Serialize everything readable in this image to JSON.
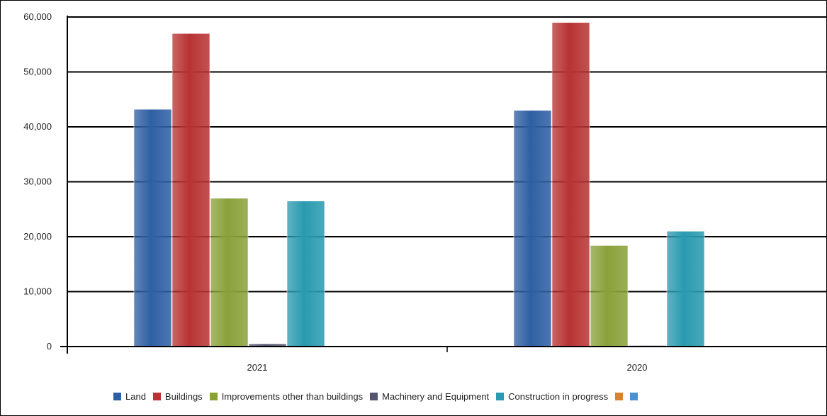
{
  "chart_data": {
    "type": "bar",
    "categories": [
      "2021",
      "2020"
    ],
    "series": [
      {
        "name": "Land",
        "color": "#2f5fa3",
        "values": [
          43200,
          43000
        ]
      },
      {
        "name": "Buildings",
        "color": "#b83333",
        "values": [
          57000,
          59000
        ]
      },
      {
        "name": "Improvements other than buildings",
        "color": "#8aa13a",
        "values": [
          27000,
          18400
        ]
      },
      {
        "name": "Machinery and Equipment",
        "color": "#55556f",
        "values": [
          500,
          200
        ]
      },
      {
        "name": "Construction in progress",
        "color": "#2a9ab0",
        "values": [
          26500,
          21000
        ]
      },
      {
        "name": "",
        "color": "#d9822b",
        "values": [
          0,
          0
        ]
      },
      {
        "name": "",
        "color": "#4f90cc",
        "values": [
          0,
          0
        ]
      }
    ],
    "ylim": [
      0,
      60000
    ],
    "yticks": [
      "0",
      "10,000",
      "20,000",
      "30,000",
      "40,000",
      "50,000",
      "60,000"
    ],
    "grid": true,
    "legend_position": "bottom"
  }
}
